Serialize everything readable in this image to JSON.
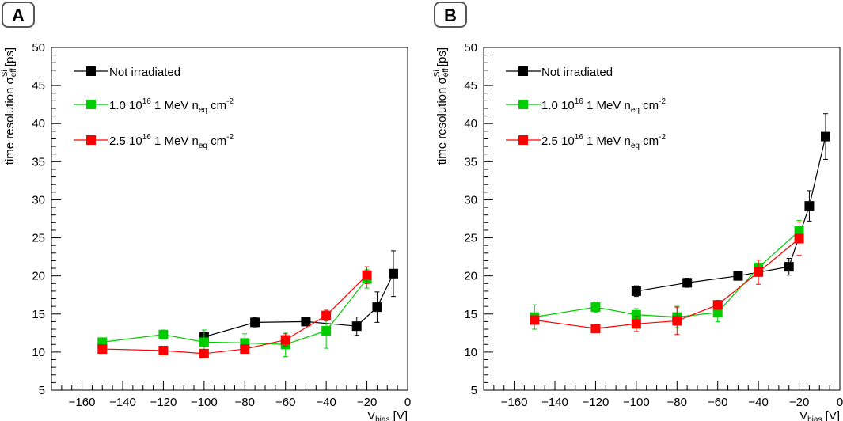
{
  "chart_data": [
    {
      "type": "scatter",
      "panel_label": "A",
      "xlabel": "V",
      "xlabel_sub": "bias",
      "xlabel_unit": "[V]",
      "ylabel": "time resolution σ",
      "ylabel_sub": "eff",
      "ylabel_sup": "Si",
      "ylabel_unit": "[ps]",
      "xlim": [
        -175,
        0
      ],
      "ylim": [
        5,
        50
      ],
      "xticks": [
        -160,
        -140,
        -120,
        -100,
        -80,
        -60,
        -40,
        -20,
        0
      ],
      "yticks": [
        5,
        10,
        15,
        20,
        25,
        30,
        35,
        40,
        45,
        50
      ],
      "legend": [
        "Not irradiated",
        "1.0 10^16 1 MeV n_eq cm^-2",
        "2.5 10^16 1 MeV n_eq cm^-2"
      ],
      "series": [
        {
          "name": "Not irradiated",
          "color": "#000000",
          "x": [
            -100,
            -75,
            -50,
            -25,
            -15,
            -7
          ],
          "y": [
            12.0,
            13.9,
            14.0,
            13.4,
            15.9,
            20.3
          ],
          "err": [
            0.6,
            0.6,
            0.4,
            1.2,
            2.0,
            3.0
          ]
        },
        {
          "name": "1.0 10^16 1 MeV n_eq cm^-2",
          "color": "#00cc00",
          "x": [
            -150,
            -120,
            -100,
            -80,
            -60,
            -40,
            -20
          ],
          "y": [
            11.3,
            12.3,
            11.3,
            11.2,
            11.0,
            12.8,
            19.6
          ],
          "err": [
            0.4,
            0.6,
            1.6,
            1.2,
            1.6,
            2.3,
            1.2
          ]
        },
        {
          "name": "2.5 10^16 1 MeV n_eq cm^-2",
          "color": "#ff0000",
          "x": [
            -150,
            -120,
            -100,
            -80,
            -60,
            -40,
            -20
          ],
          "y": [
            10.4,
            10.2,
            9.8,
            10.4,
            11.6,
            14.8,
            20.1
          ],
          "err": [
            0.3,
            0.3,
            0.4,
            0.4,
            0.8,
            0.7,
            1.1
          ]
        }
      ]
    },
    {
      "type": "scatter",
      "panel_label": "B",
      "xlabel": "V",
      "xlabel_sub": "bias",
      "xlabel_unit": "[V]",
      "ylabel": "time resolution σ",
      "ylabel_sub": "eff",
      "ylabel_sup": "Si",
      "ylabel_unit": "[ps]",
      "xlim": [
        -175,
        0
      ],
      "ylim": [
        5,
        50
      ],
      "xticks": [
        -160,
        -140,
        -120,
        -100,
        -80,
        -60,
        -40,
        -20,
        0
      ],
      "yticks": [
        5,
        10,
        15,
        20,
        25,
        30,
        35,
        40,
        45,
        50
      ],
      "legend": [
        "Not irradiated",
        "1.0 10^16 1 MeV n_eq cm^-2",
        "2.5 10^16 1 MeV n_eq cm^-2"
      ],
      "series": [
        {
          "name": "Not irradiated",
          "color": "#000000",
          "x": [
            -100,
            -75,
            -50,
            -25,
            -15,
            -7
          ],
          "y": [
            18.0,
            19.1,
            20.0,
            21.2,
            29.2,
            38.3
          ],
          "err": [
            0.7,
            0.6,
            0.4,
            1.1,
            2.0,
            3.0
          ]
        },
        {
          "name": "1.0 10^16 1 MeV n_eq cm^-2",
          "color": "#00cc00",
          "x": [
            -150,
            -120,
            -100,
            -80,
            -60,
            -40,
            -20
          ],
          "y": [
            14.6,
            15.9,
            14.9,
            14.6,
            15.2,
            21.1,
            25.9
          ],
          "err": [
            1.6,
            0.7,
            0.8,
            1.4,
            1.2,
            1.0,
            1.4
          ]
        },
        {
          "name": "2.5 10^16 1 MeV n_eq cm^-2",
          "color": "#ff0000",
          "x": [
            -150,
            -120,
            -100,
            -80,
            -60,
            -40,
            -20
          ],
          "y": [
            14.2,
            13.1,
            13.7,
            14.1,
            16.2,
            20.5,
            24.9
          ],
          "err": [
            0.5,
            0.4,
            1.0,
            1.8,
            0.6,
            1.6,
            2.2
          ]
        }
      ]
    }
  ]
}
